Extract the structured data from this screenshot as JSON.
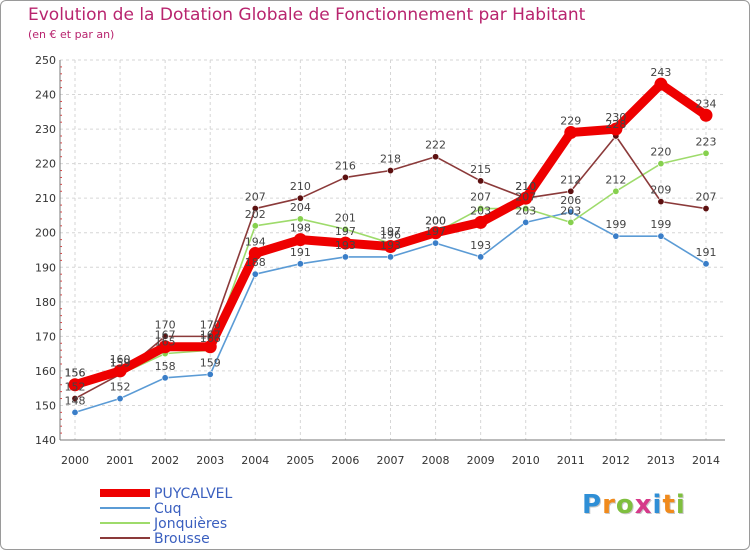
{
  "title": "Evolution de la Dotation Globale de Fonctionnement par Habitant",
  "subtitle": "(en € et par an)",
  "logo": {
    "letters": [
      "P",
      "r",
      "o",
      "x",
      "i",
      "t",
      "i"
    ],
    "colors": [
      "#2f8fd6",
      "#f08a1c",
      "#7fbf3f",
      "#d63a8a",
      "#2f8fd6",
      "#f08a1c",
      "#7fbf3f"
    ]
  },
  "chart_data": {
    "type": "line",
    "title": "Evolution de la Dotation Globale de Fonctionnement par Habitant",
    "ylabel": "(en € et par an)",
    "xlabel": "",
    "categories": [
      "2000",
      "2001",
      "2002",
      "2003",
      "2004",
      "2005",
      "2006",
      "2007",
      "2008",
      "2009",
      "2010",
      "2011",
      "2012",
      "2013",
      "2014"
    ],
    "ylim": [
      140,
      250
    ],
    "yticks": [
      140,
      150,
      160,
      170,
      180,
      190,
      200,
      210,
      220,
      230,
      240,
      250
    ],
    "grid": true,
    "legend": "bottom-left",
    "series": [
      {
        "name": "Cuq",
        "color": "#5b9bd5",
        "marker": "#3a7ec8",
        "values": [
          148,
          152,
          158,
          159,
          188,
          191,
          193,
          193,
          197,
          193,
          203,
          206,
          199,
          199,
          191
        ],
        "legend_order": 1
      },
      {
        "name": "Jonquières",
        "color": "#9edb6b",
        "marker": "#86d04e",
        "values": [
          156,
          159,
          165,
          166,
          202,
          204,
          201,
          197,
          200,
          207,
          207,
          203,
          212,
          220,
          223
        ],
        "legend_order": 2
      },
      {
        "name": "Brousse",
        "color": "#8b3a3a",
        "marker": "#5c1010",
        "values": [
          152,
          159,
          170,
          170,
          207,
          210,
          216,
          218,
          222,
          215,
          210,
          212,
          228,
          209,
          207
        ],
        "legend_order": 3
      },
      {
        "name": "PUYCALVEL",
        "color": "#ee0000",
        "marker": "#ee0000",
        "values": [
          156,
          160,
          167,
          167,
          194,
          198,
          197,
          196,
          200,
          203,
          210,
          229,
          230,
          243,
          234
        ],
        "legend_order": 0,
        "main": true
      }
    ]
  }
}
